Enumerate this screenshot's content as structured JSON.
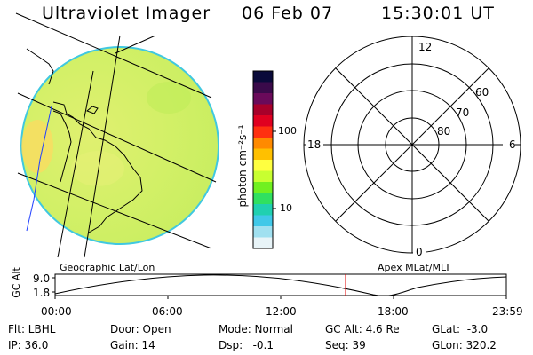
{
  "header": {
    "title": "Ultraviolet Imager",
    "date": "06 Feb 07",
    "time": "15:30:01 UT"
  },
  "colorbar": {
    "unit_label": "photon cm⁻²s⁻¹",
    "ticks": [
      "100",
      "10"
    ],
    "stops": [
      "#0a0a3a",
      "#3a0a4a",
      "#6a0a5a",
      "#a8002a",
      "#e00020",
      "#ff3010",
      "#ff8a00",
      "#ffc000",
      "#ffff40",
      "#c8ff30",
      "#70f020",
      "#30e060",
      "#20d0b0",
      "#40c8e8",
      "#a0e0f0",
      "#e8f4f8"
    ]
  },
  "polar_plot": {
    "mlt_labels": [
      "12",
      "18",
      "6",
      "0"
    ],
    "mlat_labels": [
      "60",
      "70",
      "80"
    ]
  },
  "section_labels": {
    "left": "Geographic Lat/Lon",
    "right": "Apex MLat/MLT"
  },
  "altitude_strip": {
    "ylabel": "GC Alt",
    "ytick_labels": [
      "9.0",
      "1.8"
    ],
    "time_labels": [
      "00:00",
      "06:00",
      "12:00",
      "18:00",
      "23:59"
    ],
    "current_time_marker_color": "#e00000"
  },
  "info": {
    "row1": {
      "filter": "Flt: LBHL",
      "door": "Door: Open",
      "mode": "Mode: Normal",
      "gc_alt": "GC Alt: 4.6 Re",
      "glat": "GLat:  -3.0"
    },
    "row2": {
      "ip": "IP: 36.0",
      "gain": "Gain: 14",
      "dsp": "Dsp:   -0.1",
      "seq": "Seq: 39",
      "glon": "GLon: 320.2"
    }
  },
  "colors": {
    "background": "#ffffff",
    "disk_fill": "#d8f070",
    "disk_edge": "#40c8e0",
    "coast_blue": "#2040ff",
    "marker": "#e00000"
  }
}
